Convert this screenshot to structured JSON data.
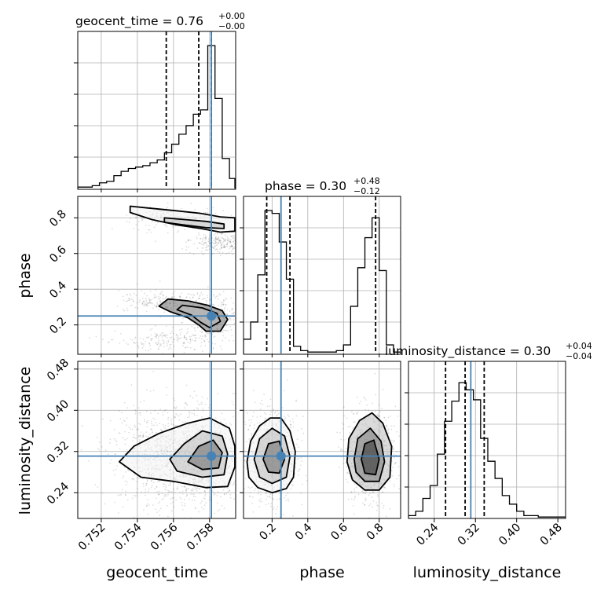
{
  "chart_data": {
    "type": "corner",
    "parameters": [
      {
        "name": "geocent_time",
        "label": "geocent_time",
        "title_prefix": "geocent_time = ",
        "median": "0.76",
        "plus": "+0.00",
        "minus": "−0.00",
        "range": [
          0.7507,
          0.7594
        ],
        "ticks": [
          "0.752",
          "0.754",
          "0.756",
          "0.758"
        ],
        "tick_values": [
          0.752,
          0.754,
          0.756,
          0.758
        ],
        "quantiles": [
          0.7556,
          0.7574,
          0.7581
        ],
        "truth": 0.7581
      },
      {
        "name": "phase",
        "label": "phase",
        "title_prefix": "phase = ",
        "median": "0.30",
        "plus": "+0.48",
        "minus": "−0.12",
        "range": [
          0.04,
          0.92
        ],
        "ticks": [
          "0.2",
          "0.4",
          "0.6",
          "0.8"
        ],
        "tick_values": [
          0.2,
          0.4,
          0.6,
          0.8
        ],
        "quantiles": [
          0.17,
          0.3,
          0.78
        ],
        "truth": 0.25
      },
      {
        "name": "luminosity_distance",
        "label": "luminosity_distance",
        "title_prefix": "luminosity_distance = ",
        "median": "0.30",
        "plus": "+0.04",
        "minus": "−0.04",
        "range": [
          0.19,
          0.495
        ],
        "ticks": [
          "0.24",
          "0.32",
          "0.40",
          "0.48"
        ],
        "tick_values": [
          0.24,
          0.32,
          0.4,
          0.48
        ],
        "quantiles": [
          0.262,
          0.3,
          0.337
        ],
        "truth": 0.311
      }
    ],
    "histograms": [
      {
        "param": "geocent_time",
        "bin_edges": [
          0.7507,
          0.7511,
          0.7515,
          0.7519,
          0.7523,
          0.7527,
          0.7531,
          0.7535,
          0.7539,
          0.7543,
          0.7547,
          0.7551,
          0.7555,
          0.7559,
          0.7563,
          0.7567,
          0.7571,
          0.7575,
          0.7579,
          0.7583,
          0.7587,
          0.7591,
          0.7594
        ],
        "counts": [
          0.01,
          0.01,
          0.02,
          0.04,
          0.05,
          0.09,
          0.12,
          0.14,
          0.15,
          0.16,
          0.18,
          0.2,
          0.25,
          0.31,
          0.38,
          0.44,
          0.52,
          0.55,
          1.0,
          0.63,
          0.21,
          0.07
        ]
      },
      {
        "param": "phase",
        "bin_edges": [
          0.04,
          0.08,
          0.12,
          0.16,
          0.2,
          0.24,
          0.28,
          0.32,
          0.36,
          0.4,
          0.44,
          0.48,
          0.52,
          0.56,
          0.6,
          0.64,
          0.68,
          0.72,
          0.76,
          0.8,
          0.84,
          0.88,
          0.92
        ],
        "counts": [
          0.1,
          0.22,
          0.55,
          1.0,
          0.98,
          0.78,
          0.52,
          0.05,
          0.02,
          0.01,
          0.01,
          0.01,
          0.01,
          0.02,
          0.06,
          0.33,
          0.6,
          0.81,
          0.95,
          0.58,
          0.06,
          0.01
        ]
      },
      {
        "param": "luminosity_distance",
        "bin_edges": [
          0.19,
          0.204,
          0.218,
          0.232,
          0.246,
          0.26,
          0.274,
          0.288,
          0.302,
          0.316,
          0.33,
          0.344,
          0.358,
          0.372,
          0.386,
          0.4,
          0.414,
          0.428,
          0.442,
          0.456,
          0.47,
          0.484,
          0.495
        ],
        "counts": [
          0.02,
          0.05,
          0.14,
          0.23,
          0.45,
          0.68,
          0.82,
          0.95,
          0.9,
          0.83,
          0.56,
          0.4,
          0.28,
          0.16,
          0.1,
          0.05,
          0.02,
          0.02,
          0.01,
          0.01,
          0.01,
          0.01
        ]
      }
    ],
    "contours": [
      {
        "x": "geocent_time",
        "y": "phase",
        "levels": [
          [
            [
              0.7536,
              0.865
            ],
            [
              0.7546,
              0.855
            ],
            [
              0.7561,
              0.84
            ],
            [
              0.7575,
              0.825
            ],
            [
              0.7586,
              0.805
            ],
            [
              0.7594,
              0.8
            ],
            [
              0.7594,
              0.725
            ],
            [
              0.7586,
              0.72
            ],
            [
              0.7575,
              0.74
            ],
            [
              0.7562,
              0.76
            ],
            [
              0.7548,
              0.79
            ],
            [
              0.7536,
              0.83
            ]
          ],
          [
            [
              0.7555,
              0.8
            ],
            [
              0.7566,
              0.79
            ],
            [
              0.7578,
              0.78
            ],
            [
              0.7588,
              0.765
            ],
            [
              0.7588,
              0.74
            ],
            [
              0.7578,
              0.745
            ],
            [
              0.7566,
              0.76
            ],
            [
              0.7555,
              0.775
            ]
          ],
          [
            [
              0.7557,
              0.345
            ],
            [
              0.7568,
              0.335
            ],
            [
              0.7579,
              0.31
            ],
            [
              0.7587,
              0.28
            ],
            [
              0.759,
              0.23
            ],
            [
              0.7586,
              0.165
            ],
            [
              0.7578,
              0.165
            ],
            [
              0.7574,
              0.2
            ],
            [
              0.7568,
              0.24
            ],
            [
              0.7558,
              0.275
            ],
            [
              0.7552,
              0.305
            ]
          ],
          [
            [
              0.7565,
              0.31
            ],
            [
              0.7576,
              0.295
            ],
            [
              0.7584,
              0.265
            ],
            [
              0.7586,
              0.22
            ],
            [
              0.758,
              0.185
            ],
            [
              0.7575,
              0.215
            ],
            [
              0.757,
              0.255
            ],
            [
              0.7562,
              0.285
            ]
          ]
        ]
      },
      {
        "x": "geocent_time",
        "y": "luminosity_distance",
        "levels": [
          [
            [
              0.753,
              0.3
            ],
            [
              0.7538,
              0.33
            ],
            [
              0.7552,
              0.355
            ],
            [
              0.7568,
              0.375
            ],
            [
              0.758,
              0.385
            ],
            [
              0.7591,
              0.365
            ],
            [
              0.7594,
              0.33
            ],
            [
              0.7594,
              0.29
            ],
            [
              0.759,
              0.252
            ],
            [
              0.7578,
              0.25
            ],
            [
              0.756,
              0.262
            ],
            [
              0.7542,
              0.27
            ]
          ],
          [
            [
              0.7558,
              0.305
            ],
            [
              0.7566,
              0.335
            ],
            [
              0.7576,
              0.36
            ],
            [
              0.7587,
              0.35
            ],
            [
              0.759,
              0.315
            ],
            [
              0.7588,
              0.275
            ],
            [
              0.7576,
              0.27
            ],
            [
              0.7562,
              0.282
            ]
          ],
          [
            [
              0.7568,
              0.3
            ],
            [
              0.7574,
              0.33
            ],
            [
              0.7582,
              0.342
            ],
            [
              0.7587,
              0.318
            ],
            [
              0.7585,
              0.288
            ],
            [
              0.7576,
              0.285
            ]
          ]
        ]
      },
      {
        "x": "phase",
        "y": "luminosity_distance",
        "levels": [
          [
            [
              0.06,
              0.3
            ],
            [
              0.08,
              0.34
            ],
            [
              0.13,
              0.37
            ],
            [
              0.19,
              0.385
            ],
            [
              0.25,
              0.385
            ],
            [
              0.3,
              0.36
            ],
            [
              0.33,
              0.32
            ],
            [
              0.32,
              0.27
            ],
            [
              0.28,
              0.248
            ],
            [
              0.2,
              0.24
            ],
            [
              0.12,
              0.25
            ],
            [
              0.07,
              0.27
            ]
          ],
          [
            [
              0.1,
              0.305
            ],
            [
              0.13,
              0.345
            ],
            [
              0.2,
              0.365
            ],
            [
              0.27,
              0.35
            ],
            [
              0.3,
              0.31
            ],
            [
              0.28,
              0.27
            ],
            [
              0.2,
              0.258
            ],
            [
              0.13,
              0.27
            ]
          ],
          [
            [
              0.15,
              0.305
            ],
            [
              0.18,
              0.335
            ],
            [
              0.24,
              0.34
            ],
            [
              0.27,
              0.305
            ],
            [
              0.24,
              0.278
            ],
            [
              0.18,
              0.28
            ]
          ],
          [
            [
              0.62,
              0.3
            ],
            [
              0.63,
              0.345
            ],
            [
              0.69,
              0.38
            ],
            [
              0.76,
              0.395
            ],
            [
              0.82,
              0.375
            ],
            [
              0.87,
              0.33
            ],
            [
              0.86,
              0.27
            ],
            [
              0.8,
              0.245
            ],
            [
              0.72,
              0.245
            ],
            [
              0.65,
              0.265
            ]
          ],
          [
            [
              0.66,
              0.305
            ],
            [
              0.68,
              0.345
            ],
            [
              0.75,
              0.365
            ],
            [
              0.81,
              0.34
            ],
            [
              0.83,
              0.3
            ],
            [
              0.8,
              0.262
            ],
            [
              0.72,
              0.262
            ],
            [
              0.67,
              0.28
            ]
          ],
          [
            [
              0.7,
              0.305
            ],
            [
              0.72,
              0.335
            ],
            [
              0.77,
              0.342
            ],
            [
              0.8,
              0.305
            ],
            [
              0.78,
              0.275
            ],
            [
              0.72,
              0.278
            ]
          ]
        ]
      }
    ],
    "truth_color": "#4682b4",
    "quantile_style": "dashed",
    "grid": true
  }
}
